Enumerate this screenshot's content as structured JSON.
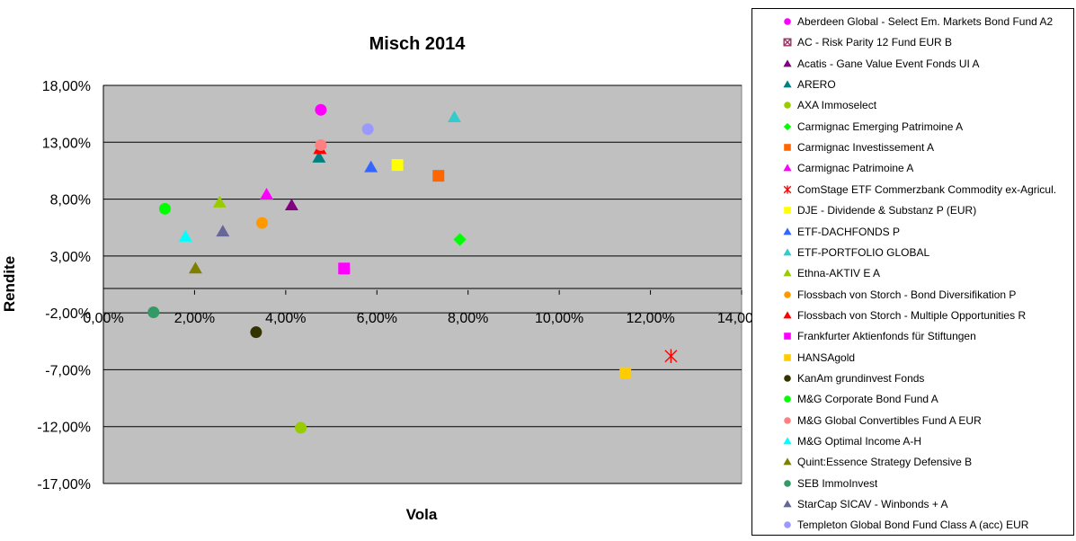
{
  "chart_data": {
    "type": "scatter",
    "title": "Misch 2014",
    "xlabel": "Vola",
    "ylabel": "Rendite",
    "xlim": [
      0,
      0.14
    ],
    "ylim": [
      -0.17,
      0.18
    ],
    "x_ticks": [
      0,
      0.02,
      0.04,
      0.06,
      0.08,
      0.1,
      0.12,
      0.14
    ],
    "x_tick_labels": [
      "0,00%",
      "2,00%",
      "4,00%",
      "6,00%",
      "8,00%",
      "10,00%",
      "12,00%",
      "14,00%"
    ],
    "y_ticks": [
      0.18,
      0.13,
      0.08,
      0.03,
      -0.02,
      -0.07,
      -0.12,
      -0.17
    ],
    "y_tick_labels": [
      "18,00%",
      "13,00%",
      "8,00%",
      "3,00%",
      "-2,00%",
      "-7,00%",
      "-12,00%",
      "-17,00%"
    ],
    "grid": true,
    "plot_background": "#c0c0c0",
    "legend_position": "right",
    "series": [
      {
        "name": "Aberdeen Global - Select Em. Markets Bond Fund A2",
        "marker": "circle",
        "color": "#ff00ff",
        "x": 0.0477,
        "y": 0.1585
      },
      {
        "name": "AC - Risk Parity 12 Fund EUR B",
        "marker": "xsquare",
        "color": "#993366",
        "x": null,
        "y": null
      },
      {
        "name": "Acatis - Gane Value Event Fonds UI A",
        "marker": "triangle",
        "color": "#800080",
        "x": 0.0413,
        "y": 0.0745
      },
      {
        "name": "ARERO",
        "marker": "triangle",
        "color": "#008080",
        "x": 0.0473,
        "y": 0.1165
      },
      {
        "name": "AXA Immoselect",
        "marker": "circle",
        "color": "#99cc00",
        "x": 0.0433,
        "y": -0.121
      },
      {
        "name": "Carmignac Emerging Patrimoine A",
        "marker": "diamond",
        "color": "#00ff00",
        "x": 0.0782,
        "y": 0.0445
      },
      {
        "name": "Carmignac Investissement A",
        "marker": "square",
        "color": "#ff6600",
        "x": 0.0735,
        "y": 0.1005
      },
      {
        "name": "Carmignac Patrimoine A",
        "marker": "triangle",
        "color": "#ff00ff",
        "x": 0.0358,
        "y": 0.084
      },
      {
        "name": "ComStage ETF Commerzbank Commodity ex-Agricul.",
        "marker": "star",
        "color": "#ff0000",
        "x": 0.1245,
        "y": -0.058
      },
      {
        "name": "DJE - Dividende & Substanz P (EUR)",
        "marker": "square",
        "color": "#ffff00",
        "x": 0.0645,
        "y": 0.11
      },
      {
        "name": "ETF-DACHFONDS P",
        "marker": "triangle",
        "color": "#3366ff",
        "x": 0.0587,
        "y": 0.108
      },
      {
        "name": "ETF-PORTFOLIO GLOBAL",
        "marker": "triangle",
        "color": "#33cccc",
        "x": 0.077,
        "y": 0.152
      },
      {
        "name": "Ethna-AKTIV E A",
        "marker": "triangle",
        "color": "#99cc00",
        "x": 0.0255,
        "y": 0.077
      },
      {
        "name": "Flossbach von Storch - Bond Diversifikation P",
        "marker": "circle",
        "color": "#ff9900",
        "x": 0.0348,
        "y": 0.059
      },
      {
        "name": "Flossbach von Storch - Multiple Opportunities R",
        "marker": "triangle",
        "color": "#ff0000",
        "x": 0.0475,
        "y": 0.124
      },
      {
        "name": "Frankfurter Aktienfonds für Stiftungen",
        "marker": "square",
        "color": "#ff00ff",
        "x": 0.0528,
        "y": 0.019
      },
      {
        "name": "HANSAgold",
        "marker": "square",
        "color": "#ffcc00",
        "x": 0.1145,
        "y": -0.073
      },
      {
        "name": "KanAm grundinvest Fonds",
        "marker": "circle",
        "color": "#333300",
        "x": 0.0335,
        "y": -0.037
      },
      {
        "name": "M&G Corporate Bond Fund A",
        "marker": "circle",
        "color": "#00ff00",
        "x": 0.0135,
        "y": 0.0715
      },
      {
        "name": "M&G Global Convertibles Fund A EUR",
        "marker": "circle",
        "color": "#ff8080",
        "x": 0.0477,
        "y": 0.1275
      },
      {
        "name": "M&G Optimal Income A-H",
        "marker": "triangle",
        "color": "#00ffff",
        "x": 0.018,
        "y": 0.047
      },
      {
        "name": "Quint:Essence Strategy Defensive B",
        "marker": "triangle",
        "color": "#808000",
        "x": 0.0202,
        "y": 0.019
      },
      {
        "name": "SEB ImmoInvest",
        "marker": "circle",
        "color": "#339966",
        "x": 0.011,
        "y": -0.0195
      },
      {
        "name": "StarCap SICAV - Winbonds + A",
        "marker": "triangle",
        "color": "#666699",
        "x": 0.0262,
        "y": 0.0515
      },
      {
        "name": "Templeton Global Bond Fund Class A (acc) EUR",
        "marker": "circle",
        "color": "#9999ff",
        "x": 0.058,
        "y": 0.1415
      }
    ]
  }
}
